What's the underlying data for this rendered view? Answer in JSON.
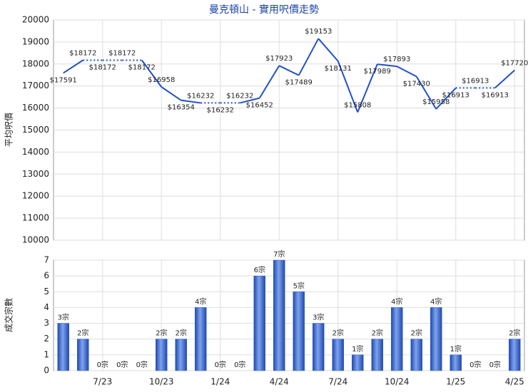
{
  "chart_data": [
    {
      "type": "line",
      "title": "曼克頓山 - 實用呎價走勢",
      "y_label": "平均呎價",
      "ylim": [
        10000,
        20000
      ],
      "yticks": [
        10000,
        11000,
        12000,
        13000,
        14000,
        15000,
        16000,
        17000,
        18000,
        19000,
        20000
      ],
      "grid": true,
      "color": "#2150c8",
      "values": [
        17591,
        18172,
        18172,
        18172,
        18172,
        16958,
        16354,
        16232,
        16232,
        16232,
        16452,
        17923,
        17489,
        19153,
        18131,
        15808,
        17989,
        17893,
        17430,
        15958,
        16913,
        16913,
        16913,
        17720
      ],
      "value_labels": [
        "$17591",
        "$18172",
        "$18172",
        "$18172",
        "$18172",
        "$16958",
        "$16354",
        "$16232",
        "$16232",
        "$16232",
        "$16452",
        "$17923",
        "$17489",
        "$19153",
        "$18131",
        "$15808",
        "$17989",
        "$17893",
        "$17430",
        "$15958",
        "$16913",
        "$16913",
        "$16913",
        "$17720"
      ]
    },
    {
      "type": "bar",
      "y_label": "成交宗數",
      "categories": [
        null,
        null,
        "7/23",
        null,
        null,
        "10/23",
        null,
        null,
        "1/24",
        null,
        null,
        "4/24",
        null,
        null,
        "7/24",
        null,
        null,
        "10/24",
        null,
        null,
        "1/25",
        null,
        null,
        "4/25"
      ],
      "ylim": [
        0,
        7
      ],
      "yticks": [
        0,
        1,
        2,
        3,
        4,
        5,
        6,
        7
      ],
      "grid": true,
      "color": "#2f5fc8",
      "values": [
        3,
        2,
        0,
        0,
        0,
        2,
        2,
        4,
        0,
        0,
        6,
        7,
        5,
        3,
        2,
        1,
        2,
        4,
        2,
        4,
        1,
        0,
        0,
        2
      ],
      "value_labels": [
        "3宗",
        "2宗",
        "0宗",
        "0宗",
        "0宗",
        "2宗",
        "2宗",
        "4宗",
        "0宗",
        "0宗",
        "6宗",
        "7宗",
        "5宗",
        "3宗",
        "2宗",
        "1宗",
        "2宗",
        "4宗",
        "2宗",
        "4宗",
        "1宗",
        "0宗",
        "0宗",
        "2宗"
      ]
    }
  ]
}
